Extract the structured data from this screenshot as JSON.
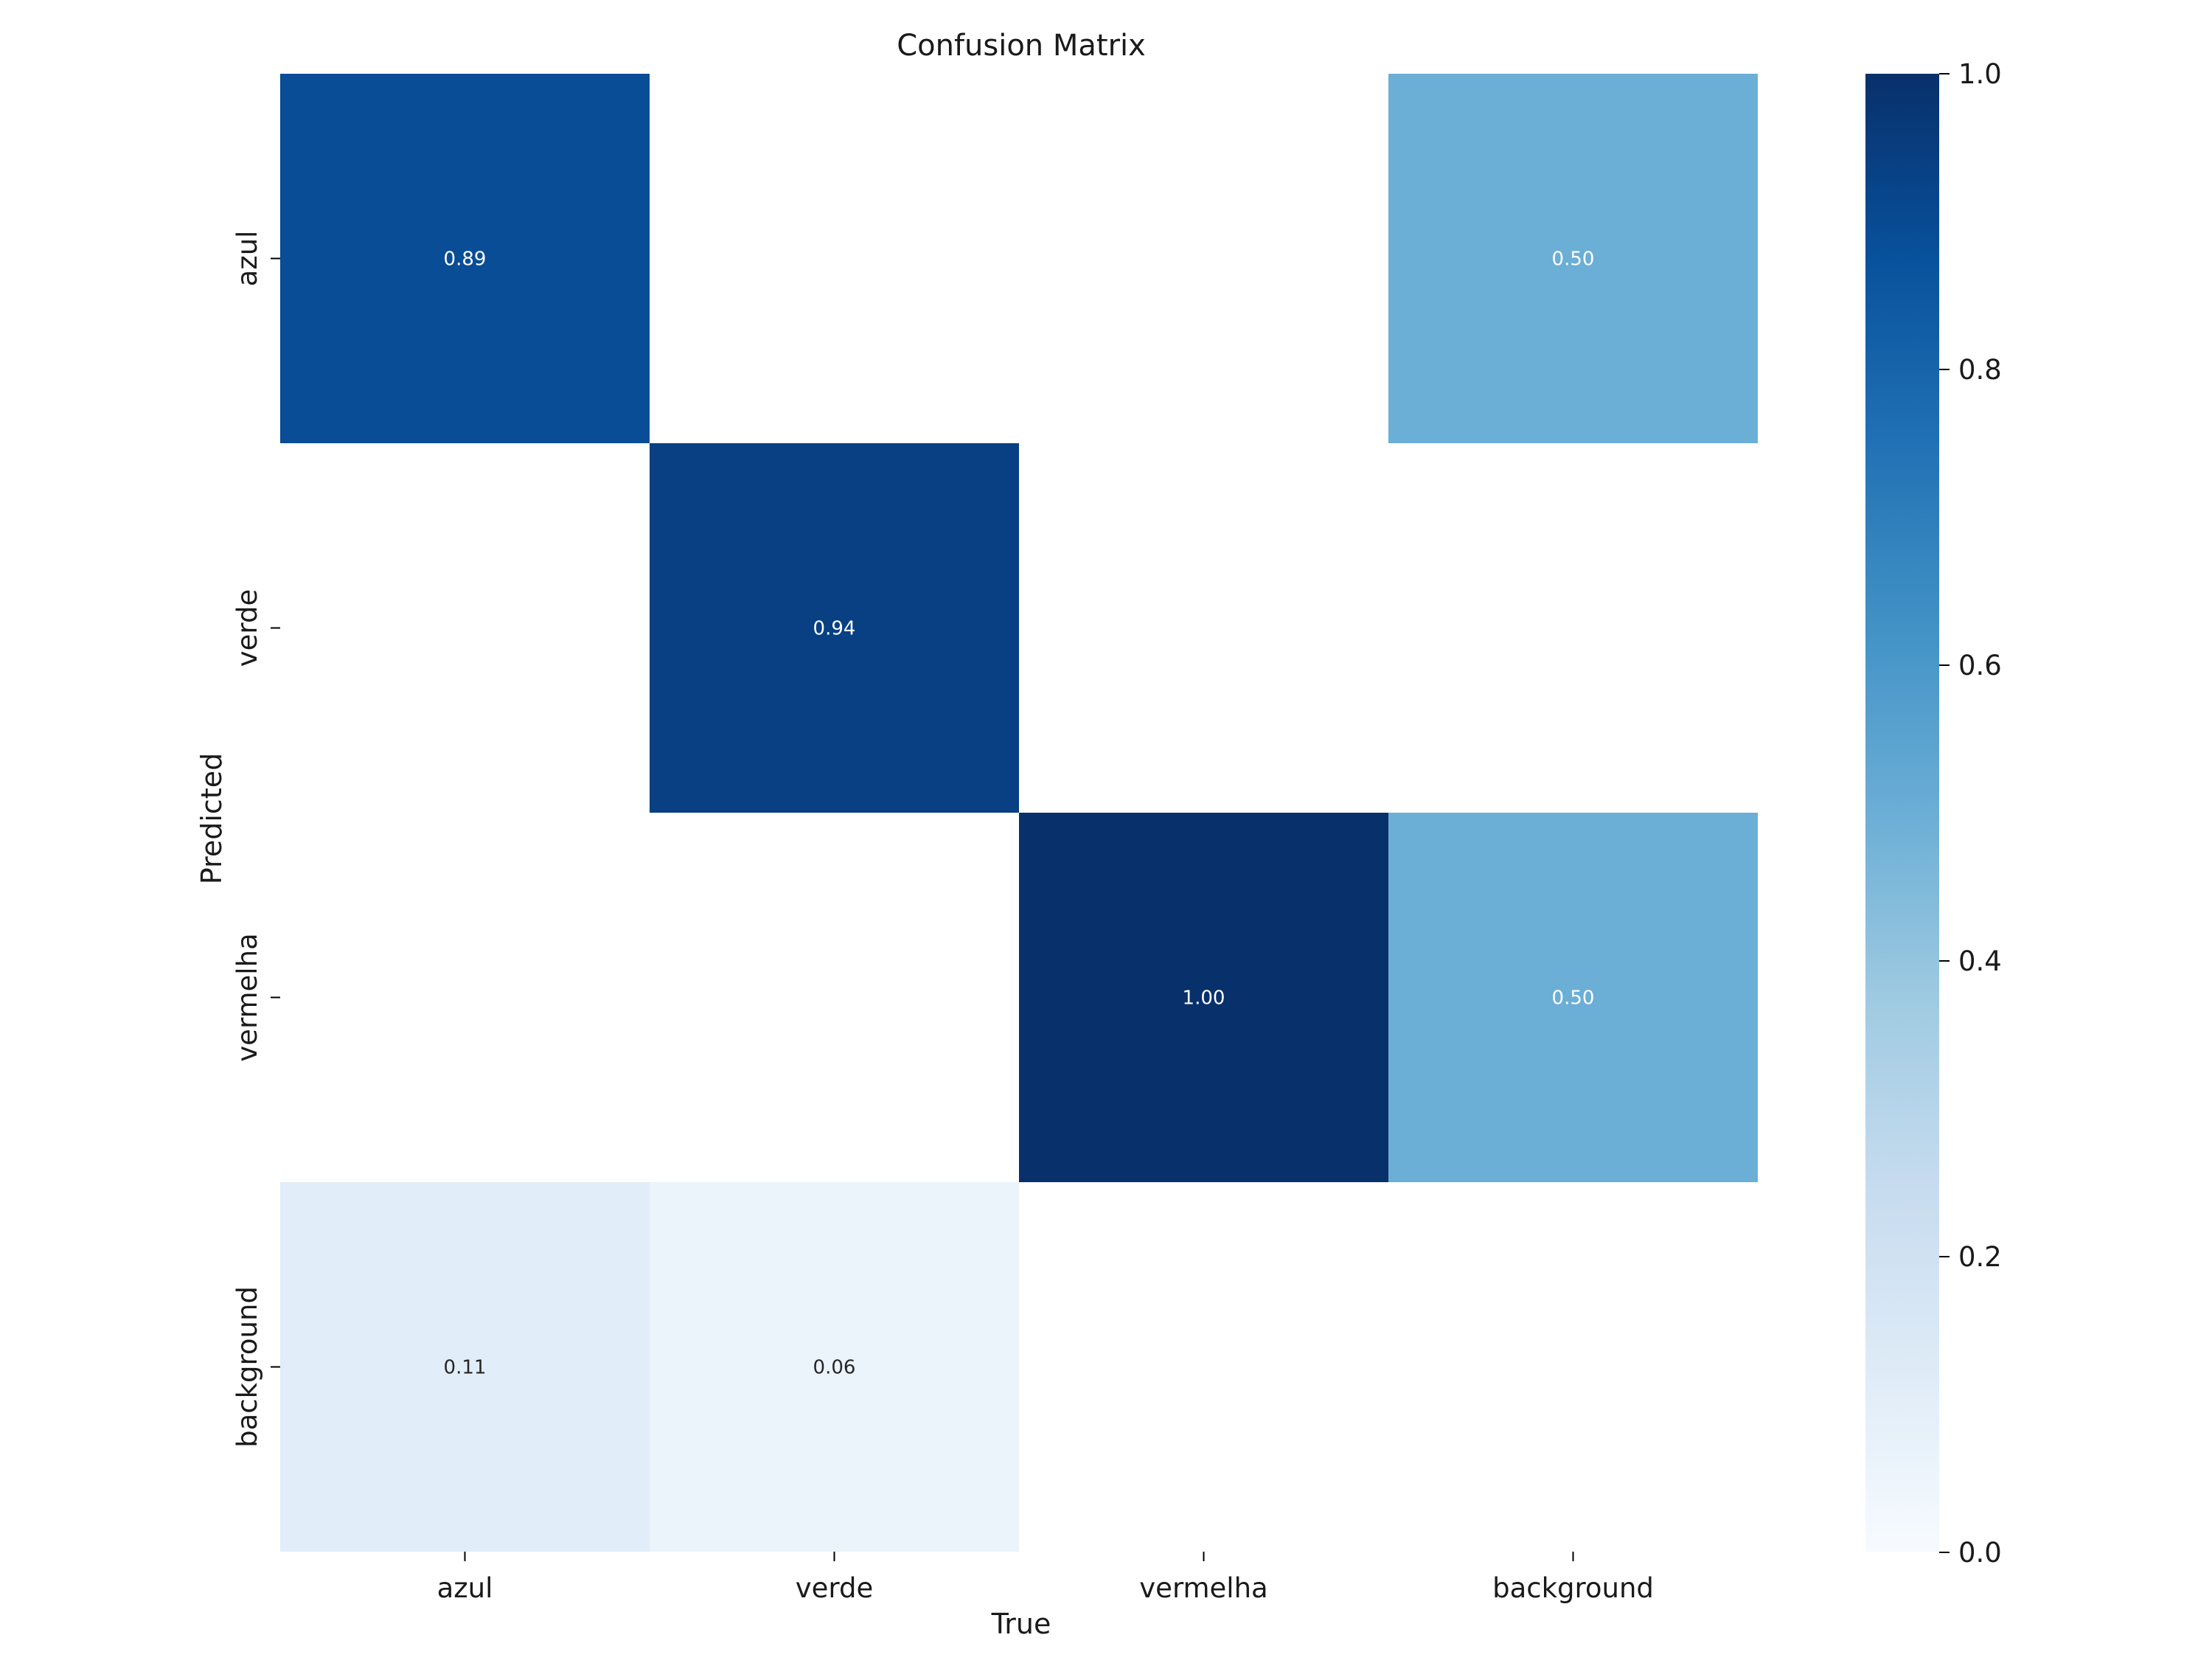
{
  "chart_data": {
    "type": "heatmap",
    "title": "Confusion Matrix",
    "xlabel": "True",
    "ylabel": "Predicted",
    "x_categories": [
      "azul",
      "verde",
      "vermelha",
      "background"
    ],
    "y_categories": [
      "azul",
      "verde",
      "vermelha",
      "background"
    ],
    "values": [
      [
        0.89,
        null,
        null,
        0.5
      ],
      [
        null,
        0.94,
        null,
        null
      ],
      [
        null,
        null,
        1.0,
        0.5
      ],
      [
        0.11,
        0.06,
        null,
        null
      ]
    ],
    "value_labels": [
      [
        "0.89",
        "",
        "",
        "0.50"
      ],
      [
        "",
        "0.94",
        "",
        ""
      ],
      [
        "",
        "",
        "1.00",
        "0.50"
      ],
      [
        "0.11",
        "0.06",
        "",
        ""
      ]
    ],
    "colormap": "Blues",
    "colorbar": {
      "range": [
        0.0,
        1.0
      ],
      "ticks": [
        0.0,
        0.2,
        0.4,
        0.6,
        0.8,
        1.0
      ],
      "tick_labels": [
        "0.0",
        "0.2",
        "0.4",
        "0.6",
        "0.8",
        "1.0"
      ]
    },
    "grid": false,
    "legend": "colorbar-right"
  }
}
